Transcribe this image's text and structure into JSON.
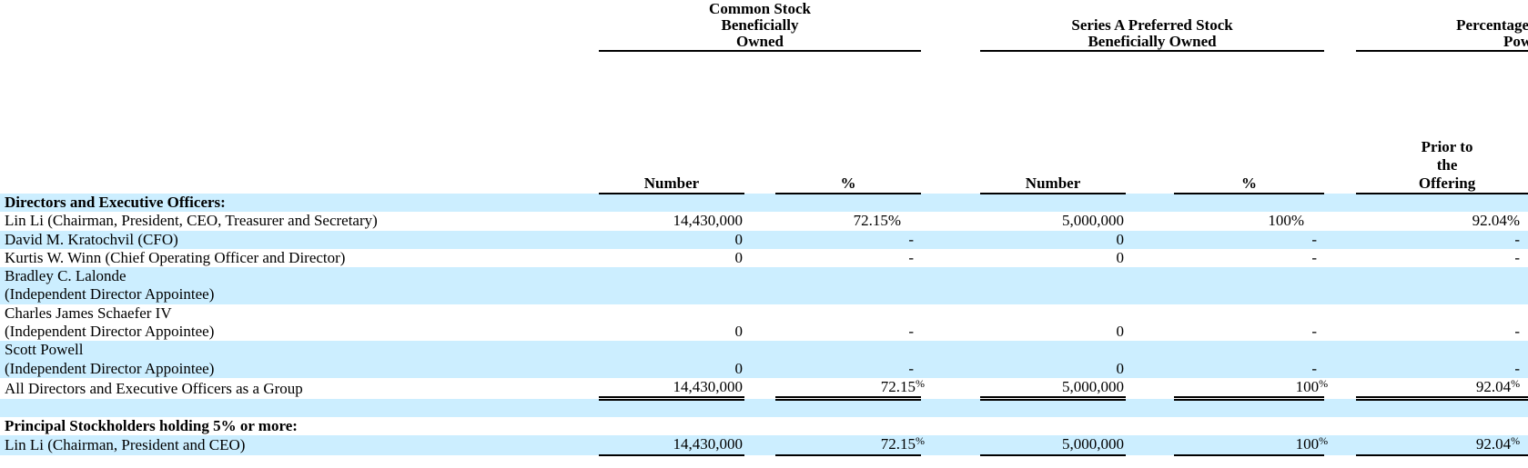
{
  "page": {
    "background_color": "#ffffff",
    "stripe_color": "#cceeff",
    "text_color": "#000000",
    "note": "beneficial ownership table, right edge of last column group clipped by viewport"
  },
  "table": {
    "group_headers": [
      {
        "lines": [
          "Common Stock",
          "Beneficially",
          "Owned"
        ]
      },
      {
        "lines": [
          "Series A Preferred Stock",
          "Beneficially Owned"
        ]
      },
      {
        "lines": [
          "Percentage of Voting",
          "Power"
        ],
        "visible_fragment": "Percentage / Pow (clipped at right edge)"
      }
    ],
    "sub_headers": {
      "common_number": "Number",
      "common_pct": "%",
      "series_number": "Number",
      "series_pct": "%",
      "voting_prior_lines": [
        "Prior to",
        "the",
        "Offering"
      ]
    },
    "rows": [
      {
        "type": "section",
        "name": "Directors and Executive Officers:",
        "shade": true
      },
      {
        "type": "data",
        "name": "Lin Li (Chairman, President, CEO, Treasurer and Secretary)",
        "shade": false,
        "cells": [
          "14,430,000",
          "72.15%",
          "5,000,000",
          "100%",
          "92.04%"
        ]
      },
      {
        "type": "data",
        "name": "David M. Kratochvil (CFO)",
        "shade": true,
        "cells": [
          "0",
          "-",
          "0",
          "-",
          "-"
        ]
      },
      {
        "type": "data",
        "name": "Kurtis W. Winn (Chief Operating Officer and Director)",
        "shade": false,
        "cells": [
          "0",
          "-",
          "0",
          "-",
          "-"
        ]
      },
      {
        "type": "data2",
        "name_lines": [
          "Bradley C. Lalonde",
          "(Independent Director Appointee)"
        ],
        "shade": true,
        "cells": [
          "",
          "",
          "",
          "",
          ""
        ]
      },
      {
        "type": "data2",
        "name_lines": [
          "Charles James Schaefer IV",
          "(Independent Director Appointee)"
        ],
        "shade": false,
        "cells": [
          "0",
          "-",
          "0",
          "-",
          "-"
        ]
      },
      {
        "type": "data2",
        "name_lines": [
          "Scott Powell",
          "(Independent Director Appointee)"
        ],
        "shade": true,
        "cells": [
          "0",
          "-",
          "0",
          "-",
          "-"
        ]
      },
      {
        "type": "total",
        "name": "All Directors and Executive Officers as a Group",
        "shade": false,
        "cells": [
          "14,430,000",
          "72.15%",
          "5,000,000",
          "100%",
          "92.04%"
        ],
        "underline": "double",
        "sup_pct": true
      },
      {
        "type": "blank",
        "shade": true
      },
      {
        "type": "section",
        "name": "Principal Stockholders holding 5% or more:",
        "shade": false
      },
      {
        "type": "total",
        "name": "Lin Li (Chairman, President and CEO)",
        "shade": true,
        "cells": [
          "14,430,000",
          "72.15%",
          "5,000,000",
          "100%",
          "92.04%"
        ],
        "underline": "single",
        "sup_pct": true
      }
    ]
  }
}
